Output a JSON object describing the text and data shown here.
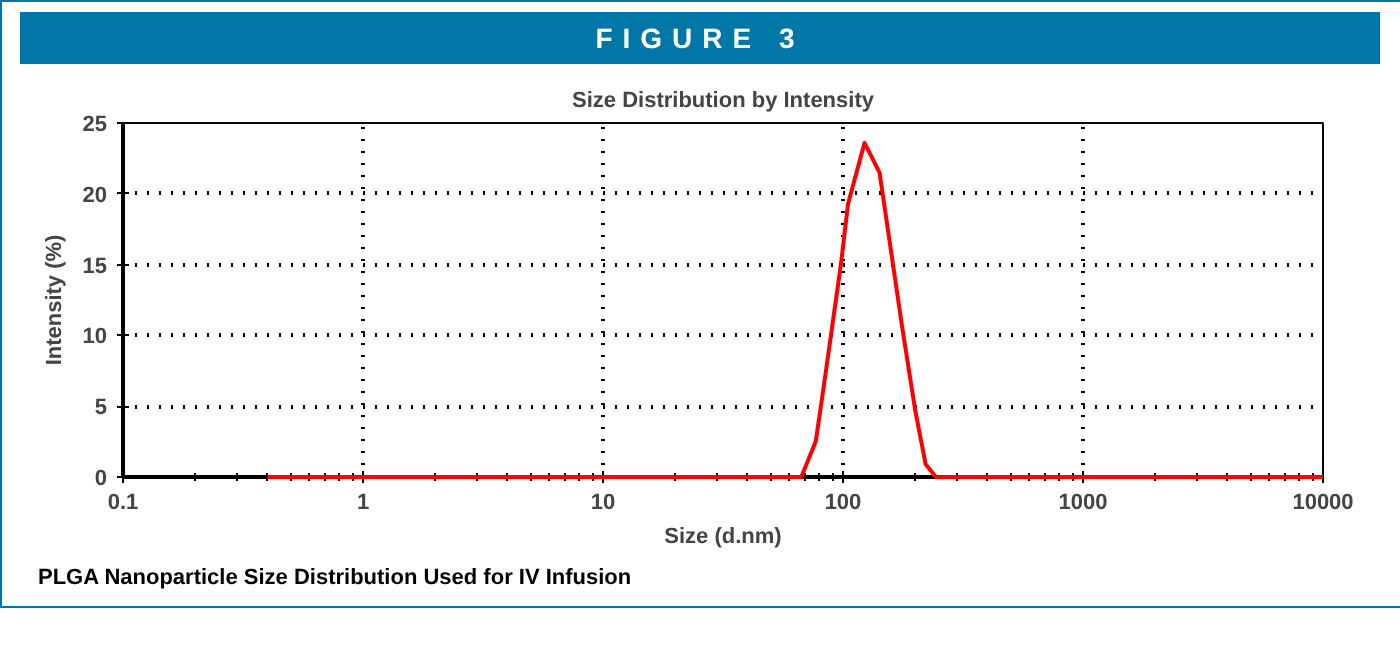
{
  "chart_data": {
    "type": "line",
    "title": "FIGURE 3",
    "subtitle": "Size Distribution by Intensity",
    "xlabel": "Size (d.nm)",
    "ylabel": "Intensity (%)",
    "annotations": [
      "PLGA Nanoparticle Size Distribution Used for IV Infusion"
    ],
    "log": "x",
    "grid": true,
    "marker": "none",
    "line_style": "solid",
    "xlim": [
      0.1,
      10000
    ],
    "xticks": [
      {
        "value": 0.1,
        "label": "0.1"
      },
      1,
      10,
      100,
      1000,
      10000
    ],
    "ylim": [
      0,
      25
    ],
    "yticks": [
      0,
      5,
      10,
      15,
      20,
      25
    ],
    "series": [
      {
        "color": "#ff0000",
        "x": [
          0.4,
          67,
          77,
          83,
          98,
          105,
          123,
          142,
          176,
          200,
          221,
          244,
          10000
        ],
        "values": [
          0,
          0,
          2.5,
          6.3,
          15,
          19.3,
          23.6,
          21.5,
          10.7,
          4.7,
          0.9,
          0,
          0
        ]
      }
    ]
  }
}
